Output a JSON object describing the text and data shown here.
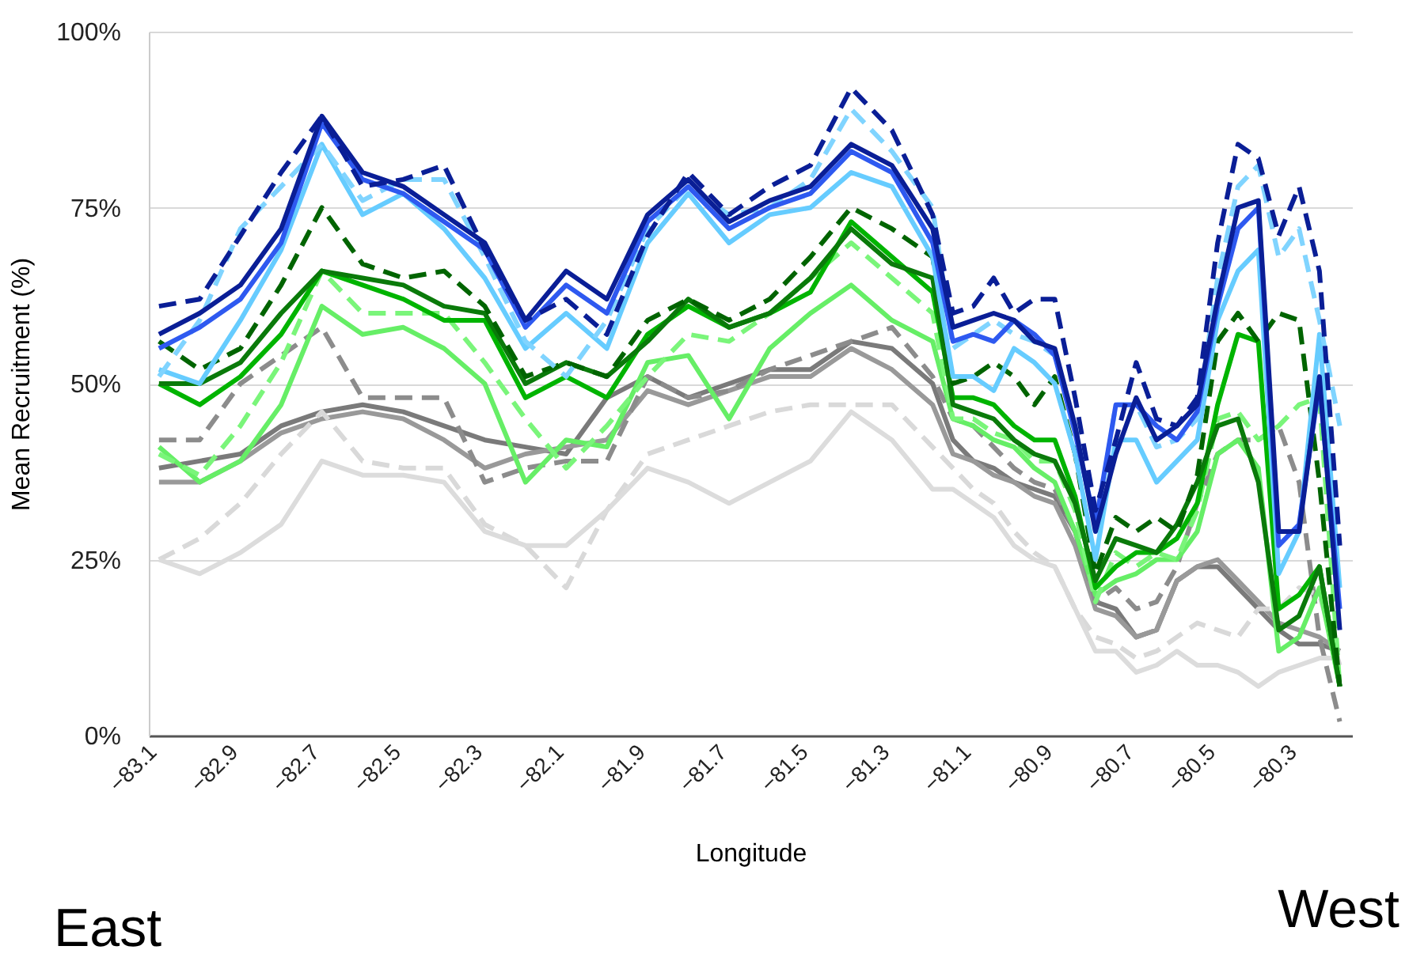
{
  "chart_data": {
    "type": "line",
    "xlabel": "Longitude",
    "ylabel": "Mean Recruitment (%)",
    "annotations": [
      "East",
      "West"
    ],
    "x": [
      -83.1,
      -83.0,
      -82.9,
      -82.8,
      -82.7,
      -82.6,
      -82.5,
      -82.4,
      -82.3,
      -82.2,
      -82.1,
      -82.0,
      -81.9,
      -81.8,
      -81.7,
      -81.6,
      -81.5,
      -81.4,
      -81.3,
      -81.2,
      -81.15,
      -81.1,
      -81.05,
      -81.0,
      -80.95,
      -80.9,
      -80.85,
      -80.8,
      -80.75,
      -80.7,
      -80.65,
      -80.6,
      -80.55,
      -80.5,
      -80.45,
      -80.4,
      -80.35,
      -80.3,
      -80.25,
      -80.2
    ],
    "xlim": [
      -83.125,
      -80.17
    ],
    "xticks": [
      -83.1,
      -82.9,
      -82.7,
      -82.5,
      -82.3,
      -82.1,
      -81.9,
      -81.7,
      -81.5,
      -81.3,
      -81.1,
      -80.9,
      -80.7,
      -80.5,
      -80.3
    ],
    "ylim": [
      0,
      100
    ],
    "yticks": [
      {
        "value": 0,
        "label": "0%"
      },
      {
        "value": 25,
        "label": "25%"
      },
      {
        "value": 50,
        "label": "50%"
      },
      {
        "value": 75,
        "label": "75%"
      },
      {
        "value": 100,
        "label": "100%"
      }
    ],
    "grid": "y",
    "marker": "none",
    "series": [
      {
        "color": "#7a7a7a",
        "line_style": "solid",
        "values": [
          38,
          39,
          40,
          44,
          46,
          47,
          46,
          44,
          42,
          41,
          40,
          48,
          51,
          48,
          50,
          52,
          52,
          56,
          55,
          50,
          42,
          39,
          38,
          36,
          35,
          34,
          29,
          19,
          18,
          14,
          15,
          22,
          24,
          24,
          21,
          18,
          15,
          13,
          13,
          12
        ]
      },
      {
        "color": "#999999",
        "line_style": "solid",
        "values": [
          36,
          36,
          39,
          43,
          45,
          46,
          45,
          42,
          38,
          40,
          41,
          42,
          49,
          47,
          49,
          51,
          51,
          55,
          52,
          47,
          40,
          39,
          37,
          36,
          34,
          33,
          27,
          18,
          17,
          14,
          15,
          22,
          24,
          25,
          22,
          19,
          16,
          15,
          14,
          12
        ]
      },
      {
        "color": "#8c8c8c",
        "line_style": "dashed",
        "values": [
          42,
          42,
          50,
          54,
          58,
          48,
          48,
          48,
          36,
          38,
          39,
          39,
          51,
          48,
          49,
          52,
          54,
          56,
          58,
          51,
          45,
          44,
          41,
          38,
          36,
          35,
          29,
          19,
          21,
          18,
          19,
          24,
          33,
          40,
          42,
          42,
          44,
          36,
          14,
          2
        ]
      },
      {
        "color": "#d9d9d9",
        "line_style": "dashed",
        "values": [
          25,
          28,
          33,
          40,
          46,
          39,
          38,
          38,
          30,
          27,
          21,
          32,
          40,
          42,
          44,
          46,
          47,
          47,
          47,
          41,
          38,
          35,
          33,
          29,
          26,
          24,
          18,
          14,
          13,
          11,
          12,
          14,
          16,
          15,
          14,
          18,
          18,
          21,
          20,
          10
        ]
      },
      {
        "color": "#dcdcdc",
        "line_style": "solid",
        "values": [
          25,
          23,
          26,
          30,
          39,
          37,
          37,
          36,
          29,
          27,
          27,
          32,
          38,
          36,
          33,
          36,
          39,
          46,
          42,
          35,
          35,
          33,
          31,
          27,
          25,
          24,
          18,
          12,
          12,
          9,
          10,
          12,
          10,
          10,
          9,
          7,
          9,
          10,
          11,
          11
        ]
      },
      {
        "color": "#66ee66",
        "line_style": "solid",
        "values": [
          41,
          36,
          39,
          47,
          61,
          57,
          58,
          55,
          50,
          36,
          42,
          41,
          53,
          54,
          45,
          55,
          60,
          64,
          59,
          56,
          45,
          44,
          42,
          41,
          38,
          36,
          29,
          20,
          22,
          23,
          25,
          25,
          29,
          40,
          42,
          38,
          12,
          14,
          21,
          7
        ]
      },
      {
        "color": "#7af57a",
        "line_style": "dashed",
        "values": [
          40,
          37,
          44,
          53,
          66,
          60,
          60,
          60,
          53,
          45,
          38,
          44,
          51,
          57,
          56,
          60,
          65,
          70,
          65,
          60,
          45,
          45,
          43,
          42,
          39,
          39,
          32,
          19,
          26,
          24,
          26,
          25,
          32,
          45,
          46,
          42,
          44,
          47,
          48,
          7
        ]
      },
      {
        "color": "#00b400",
        "line_style": "solid",
        "values": [
          50,
          47,
          51,
          57,
          66,
          64,
          62,
          59,
          59,
          48,
          51,
          48,
          57,
          61,
          58,
          60,
          63,
          73,
          68,
          63,
          48,
          48,
          47,
          44,
          42,
          42,
          34,
          21,
          24,
          26,
          26,
          28,
          33,
          47,
          57,
          56,
          18,
          20,
          24,
          7
        ]
      },
      {
        "color": "#0a7a0a",
        "line_style": "solid",
        "values": [
          50,
          50,
          53,
          60,
          66,
          65,
          64,
          61,
          60,
          50,
          53,
          51,
          56,
          62,
          58,
          60,
          65,
          72,
          67,
          65,
          47,
          46,
          45,
          42,
          40,
          39,
          33,
          22,
          28,
          27,
          26,
          30,
          36,
          44,
          45,
          36,
          15,
          17,
          24,
          7
        ]
      },
      {
        "color": "#006400",
        "line_style": "dashed",
        "values": [
          56,
          52,
          55,
          64,
          75,
          67,
          65,
          66,
          61,
          51,
          53,
          51,
          59,
          62,
          59,
          62,
          68,
          75,
          72,
          68,
          50,
          51,
          53,
          51,
          47,
          51,
          40,
          23,
          31,
          29,
          31,
          29,
          37,
          56,
          60,
          56,
          60,
          59,
          36,
          7
        ]
      },
      {
        "color": "#66ccff",
        "line_style": "solid",
        "values": [
          52,
          50,
          59,
          69,
          84,
          74,
          77,
          72,
          65,
          55,
          60,
          55,
          70,
          77,
          70,
          74,
          75,
          80,
          78,
          68,
          51,
          51,
          49,
          55,
          53,
          50,
          40,
          25,
          42,
          42,
          36,
          39,
          42,
          59,
          66,
          69,
          23,
          29,
          57,
          21
        ]
      },
      {
        "color": "#80d4ff",
        "line_style": "dashed",
        "values": [
          51,
          59,
          72,
          78,
          84,
          76,
          79,
          79,
          68,
          56,
          51,
          59,
          72,
          78,
          74,
          75,
          79,
          89,
          83,
          75,
          55,
          57,
          59,
          57,
          56,
          54,
          44,
          29,
          47,
          47,
          41,
          42,
          45,
          65,
          78,
          81,
          68,
          72,
          59,
          44
        ]
      },
      {
        "color": "#2e59f0",
        "line_style": "solid",
        "values": [
          55,
          58,
          62,
          70,
          87,
          79,
          77,
          73,
          69,
          58,
          64,
          60,
          73,
          78,
          72,
          75,
          77,
          83,
          80,
          70,
          56,
          57,
          56,
          59,
          57,
          54,
          43,
          30,
          47,
          47,
          44,
          42,
          46,
          61,
          72,
          75,
          27,
          30,
          50,
          18
        ]
      },
      {
        "color": "#0a1e96",
        "line_style": "solid",
        "values": [
          57,
          60,
          64,
          72,
          88,
          80,
          78,
          74,
          70,
          59,
          66,
          62,
          74,
          79,
          73,
          76,
          78,
          84,
          81,
          72,
          58,
          59,
          60,
          59,
          56,
          55,
          44,
          29,
          40,
          48,
          42,
          44,
          47,
          62,
          75,
          76,
          29,
          29,
          51,
          15
        ]
      },
      {
        "color": "#0a1e96",
        "line_style": "dashed",
        "values": [
          61,
          62,
          71,
          80,
          88,
          78,
          79,
          81,
          69,
          59,
          62,
          57,
          71,
          80,
          74,
          78,
          81,
          92,
          86,
          74,
          60,
          61,
          65,
          60,
          62,
          62,
          48,
          32,
          42,
          53,
          45,
          44,
          48,
          70,
          84,
          82,
          71,
          78,
          66,
          27
        ]
      }
    ]
  }
}
